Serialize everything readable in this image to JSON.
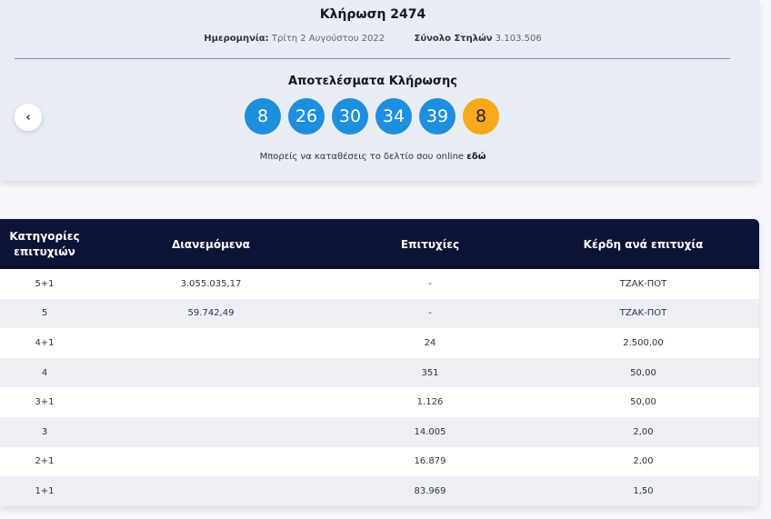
{
  "draw": {
    "title": "Κλήρωση 2474",
    "date_label": "Ημερομηνία:",
    "date_value": "Τρίτη 2 Αυγούστου 2022",
    "columns_label": "Σύνολο Στηλών",
    "columns_value": "3.103.506",
    "results_title": "Αποτελέσματα Κλήρωσης",
    "numbers": [
      "8",
      "26",
      "30",
      "34",
      "39"
    ],
    "bonus_number": "8",
    "online_text": "Μπορείς να καταθέσεις το δελτίο σου online",
    "online_link": "εδώ",
    "prev_icon": "‹",
    "colors": {
      "ball": "#1e8fde",
      "bonus_ball": "#f7a81b",
      "header": "#0b1437"
    }
  },
  "table": {
    "headers": {
      "category": "Κατηγορίες επιτυχιών",
      "distributed": "Διανεμόμενα",
      "winners": "Επιτυχίες",
      "prize": "Κέρδη ανά επιτυχία"
    },
    "rows": [
      {
        "category": "5+1",
        "distributed": "3.055.035,17",
        "winners": "-",
        "prize": "ΤΖΑΚ-ΠΟΤ"
      },
      {
        "category": "5",
        "distributed": "59.742,49",
        "winners": "-",
        "prize": "ΤΖΑΚ-ΠΟΤ"
      },
      {
        "category": "4+1",
        "distributed": "",
        "winners": "24",
        "prize": "2.500,00"
      },
      {
        "category": "4",
        "distributed": "",
        "winners": "351",
        "prize": "50,00"
      },
      {
        "category": "3+1",
        "distributed": "",
        "winners": "1.126",
        "prize": "50,00"
      },
      {
        "category": "3",
        "distributed": "",
        "winners": "14.005",
        "prize": "2,00"
      },
      {
        "category": "2+1",
        "distributed": "",
        "winners": "16.879",
        "prize": "2,00"
      },
      {
        "category": "1+1",
        "distributed": "",
        "winners": "83.969",
        "prize": "1,50"
      }
    ]
  }
}
